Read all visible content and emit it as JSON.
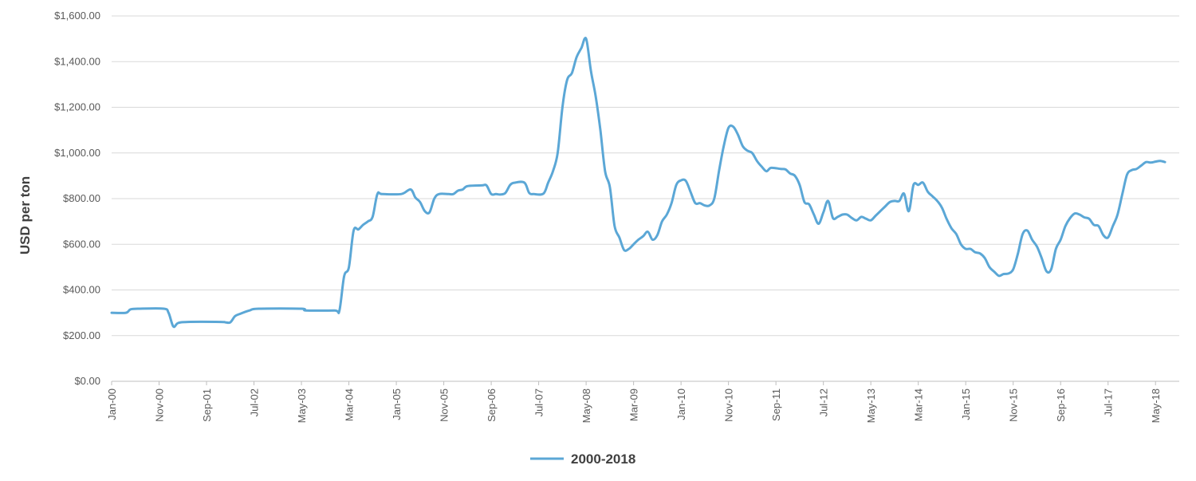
{
  "chart_data": {
    "type": "line",
    "title": "",
    "xlabel": "",
    "ylabel": "USD per ton",
    "ylim": [
      0,
      1600
    ],
    "grid": "horizontal",
    "legend_position": "bottom",
    "line_color": "#5BA7D6",
    "y_ticks": [
      "$0.00",
      "$200.00",
      "$400.00",
      "$600.00",
      "$800.00",
      "$1,000.00",
      "$1,200.00",
      "$1,400.00",
      "$1,600.00"
    ],
    "x_tick_labels": [
      "Jan-00",
      "Nov-00",
      "Sep-01",
      "Jul-02",
      "May-03",
      "Mar-04",
      "Jan-05",
      "Nov-05",
      "Sep-06",
      "Jul-07",
      "May-08",
      "Mar-09",
      "Jan-10",
      "Nov-10",
      "Sep-11",
      "Jul-12",
      "May-13",
      "Mar-14",
      "Jan-15",
      "Nov-15",
      "Sep-16",
      "Jul-17",
      "May-18"
    ],
    "x_range": [
      "Jan-00",
      "Oct-18"
    ],
    "series": [
      {
        "name": "2000-2018",
        "points": [
          [
            "Jan-00",
            300
          ],
          [
            "Apr-00",
            300
          ],
          [
            "May-00",
            315
          ],
          [
            "Jul-00",
            318
          ],
          [
            "Dec-00",
            318
          ],
          [
            "Jan-01",
            300
          ],
          [
            "Feb-01",
            240
          ],
          [
            "Mar-01",
            255
          ],
          [
            "May-01",
            260
          ],
          [
            "Dec-01",
            260
          ],
          [
            "Jan-02",
            258
          ],
          [
            "Feb-02",
            258
          ],
          [
            "Mar-02",
            285
          ],
          [
            "Apr-02",
            295
          ],
          [
            "Jun-02",
            310
          ],
          [
            "Aug-02",
            318
          ],
          [
            "May-03",
            318
          ],
          [
            "Jun-03",
            310
          ],
          [
            "Dec-03",
            310
          ],
          [
            "Jan-04",
            310
          ],
          [
            "Feb-04",
            460
          ],
          [
            "Mar-04",
            500
          ],
          [
            "Apr-04",
            660
          ],
          [
            "May-04",
            665
          ],
          [
            "Jun-04",
            685
          ],
          [
            "Jul-04",
            700
          ],
          [
            "Aug-04",
            720
          ],
          [
            "Sep-04",
            820
          ],
          [
            "Oct-04",
            820
          ],
          [
            "Feb-05",
            820
          ],
          [
            "Apr-05",
            840
          ],
          [
            "May-05",
            805
          ],
          [
            "Jun-05",
            785
          ],
          [
            "Jul-05",
            745
          ],
          [
            "Aug-05",
            740
          ],
          [
            "Sep-05",
            800
          ],
          [
            "Oct-05",
            820
          ],
          [
            "Dec-05",
            820
          ],
          [
            "Jan-06",
            820
          ],
          [
            "Feb-06",
            835
          ],
          [
            "Mar-06",
            840
          ],
          [
            "Apr-06",
            855
          ],
          [
            "Jul-06",
            858
          ],
          [
            "Aug-06",
            858
          ],
          [
            "Sep-06",
            820
          ],
          [
            "Oct-06",
            820
          ],
          [
            "Nov-06",
            818
          ],
          [
            "Dec-06",
            825
          ],
          [
            "Jan-07",
            860
          ],
          [
            "Feb-07",
            870
          ],
          [
            "Apr-07",
            870
          ],
          [
            "May-07",
            825
          ],
          [
            "Jun-07",
            820
          ],
          [
            "Aug-07",
            822
          ],
          [
            "Sep-07",
            870
          ],
          [
            "Oct-07",
            920
          ],
          [
            "Nov-07",
            1000
          ],
          [
            "Dec-07",
            1200
          ],
          [
            "Jan-08",
            1320
          ],
          [
            "Feb-08",
            1350
          ],
          [
            "Mar-08",
            1420
          ],
          [
            "Apr-08",
            1460
          ],
          [
            "May-08",
            1500
          ],
          [
            "Jun-08",
            1360
          ],
          [
            "Jul-08",
            1250
          ],
          [
            "Aug-08",
            1100
          ],
          [
            "Sep-08",
            920
          ],
          [
            "Oct-08",
            850
          ],
          [
            "Nov-08",
            680
          ],
          [
            "Dec-08",
            630
          ],
          [
            "Jan-09",
            575
          ],
          [
            "Feb-09",
            580
          ],
          [
            "Mar-09",
            600
          ],
          [
            "Apr-09",
            620
          ],
          [
            "May-09",
            635
          ],
          [
            "Jun-09",
            655
          ],
          [
            "Jul-09",
            620
          ],
          [
            "Aug-09",
            640
          ],
          [
            "Sep-09",
            700
          ],
          [
            "Oct-09",
            730
          ],
          [
            "Nov-09",
            780
          ],
          [
            "Dec-09",
            860
          ],
          [
            "Jan-10",
            880
          ],
          [
            "Feb-10",
            878
          ],
          [
            "Mar-10",
            830
          ],
          [
            "Apr-10",
            780
          ],
          [
            "May-10",
            780
          ],
          [
            "Jun-10",
            770
          ],
          [
            "Jul-10",
            770
          ],
          [
            "Aug-10",
            800
          ],
          [
            "Sep-10",
            920
          ],
          [
            "Oct-10",
            1030
          ],
          [
            "Nov-10",
            1110
          ],
          [
            "Dec-10",
            1115
          ],
          [
            "Jan-11",
            1080
          ],
          [
            "Feb-11",
            1030
          ],
          [
            "Mar-11",
            1010
          ],
          [
            "Apr-11",
            1000
          ],
          [
            "May-11",
            965
          ],
          [
            "Jun-11",
            940
          ],
          [
            "Jul-11",
            920
          ],
          [
            "Aug-11",
            935
          ],
          [
            "Oct-11",
            930
          ],
          [
            "Nov-11",
            928
          ],
          [
            "Dec-11",
            910
          ],
          [
            "Jan-12",
            900
          ],
          [
            "Feb-12",
            860
          ],
          [
            "Mar-12",
            785
          ],
          [
            "Apr-12",
            775
          ],
          [
            "May-12",
            730
          ],
          [
            "Jun-12",
            690
          ],
          [
            "Jul-12",
            740
          ],
          [
            "Aug-12",
            790
          ],
          [
            "Sep-12",
            715
          ],
          [
            "Oct-12",
            720
          ],
          [
            "Nov-12",
            730
          ],
          [
            "Dec-12",
            730
          ],
          [
            "Jan-13",
            715
          ],
          [
            "Feb-13",
            705
          ],
          [
            "Mar-13",
            720
          ],
          [
            "Apr-13",
            712
          ],
          [
            "May-13",
            705
          ],
          [
            "Jun-13",
            725
          ],
          [
            "Jul-13",
            745
          ],
          [
            "Aug-13",
            765
          ],
          [
            "Sep-13",
            785
          ],
          [
            "Oct-13",
            790
          ],
          [
            "Nov-13",
            790
          ],
          [
            "Dec-13",
            822
          ],
          [
            "Jan-14",
            745
          ],
          [
            "Feb-14",
            860
          ],
          [
            "Mar-14",
            860
          ],
          [
            "Apr-14",
            870
          ],
          [
            "May-14",
            830
          ],
          [
            "Jun-14",
            810
          ],
          [
            "Jul-14",
            790
          ],
          [
            "Aug-14",
            760
          ],
          [
            "Sep-14",
            710
          ],
          [
            "Oct-14",
            670
          ],
          [
            "Nov-14",
            645
          ],
          [
            "Dec-14",
            600
          ],
          [
            "Jan-15",
            580
          ],
          [
            "Feb-15",
            580
          ],
          [
            "Mar-15",
            565
          ],
          [
            "Apr-15",
            560
          ],
          [
            "May-15",
            540
          ],
          [
            "Jun-15",
            500
          ],
          [
            "Jul-15",
            480
          ],
          [
            "Aug-15",
            462
          ],
          [
            "Sep-15",
            470
          ],
          [
            "Oct-15",
            472
          ],
          [
            "Nov-15",
            490
          ],
          [
            "Dec-15",
            560
          ],
          [
            "Jan-16",
            645
          ],
          [
            "Feb-16",
            660
          ],
          [
            "Mar-16",
            620
          ],
          [
            "Apr-16",
            590
          ],
          [
            "May-16",
            540
          ],
          [
            "Jun-16",
            482
          ],
          [
            "Jul-16",
            490
          ],
          [
            "Aug-16",
            580
          ],
          [
            "Sep-16",
            620
          ],
          [
            "Oct-16",
            680
          ],
          [
            "Nov-16",
            715
          ],
          [
            "Dec-16",
            735
          ],
          [
            "Jan-17",
            730
          ],
          [
            "Feb-17",
            718
          ],
          [
            "Mar-17",
            712
          ],
          [
            "Apr-17",
            685
          ],
          [
            "May-17",
            680
          ],
          [
            "Jun-17",
            640
          ],
          [
            "Jul-17",
            630
          ],
          [
            "Aug-17",
            680
          ],
          [
            "Sep-17",
            730
          ],
          [
            "Oct-17",
            820
          ],
          [
            "Nov-17",
            905
          ],
          [
            "Dec-17",
            925
          ],
          [
            "Jan-18",
            930
          ],
          [
            "Feb-18",
            945
          ],
          [
            "Mar-18",
            960
          ],
          [
            "Apr-18",
            958
          ],
          [
            "May-18",
            962
          ],
          [
            "Jun-18",
            965
          ],
          [
            "Jul-18",
            960
          ]
        ]
      }
    ]
  }
}
